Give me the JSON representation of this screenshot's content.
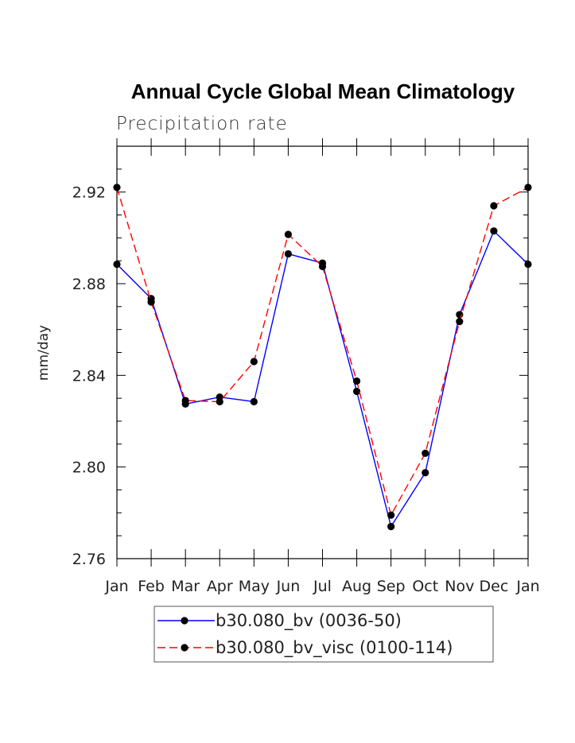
{
  "chart_data": {
    "type": "line",
    "title": "Annual Cycle Global Mean Climatology",
    "subtitle": "Precipitation rate",
    "xlabel": "",
    "ylabel": "mm/day",
    "categories": [
      "Jan",
      "Feb",
      "Mar",
      "Apr",
      "May",
      "Jun",
      "Jul",
      "Aug",
      "Sep",
      "Oct",
      "Nov",
      "Dec",
      "Jan"
    ],
    "ylim": [
      2.76,
      2.94
    ],
    "yticks": [
      2.76,
      2.8,
      2.84,
      2.88,
      2.92
    ],
    "ytick_labels": [
      "2.76",
      "2.80",
      "2.84",
      "2.88",
      "2.92"
    ],
    "grid": false,
    "legend_position": "bottom-center",
    "series": [
      {
        "name": "b30.080_bv (0036-50)",
        "color": "#0000ff",
        "dash": "solid",
        "marker": "filled-circle",
        "values": [
          2.8885,
          2.8735,
          2.8275,
          2.8305,
          2.8285,
          2.893,
          2.889,
          2.833,
          2.774,
          2.7975,
          2.8665,
          2.903,
          2.8885
        ]
      },
      {
        "name": "b30.080_bv_visc (0100-114)",
        "color": "#ff0000",
        "dash": "dashed",
        "marker": "filled-circle",
        "values": [
          2.922,
          2.872,
          2.829,
          2.8285,
          2.846,
          2.9015,
          2.8875,
          2.8375,
          2.779,
          2.806,
          2.8635,
          2.914,
          2.922
        ]
      }
    ]
  }
}
